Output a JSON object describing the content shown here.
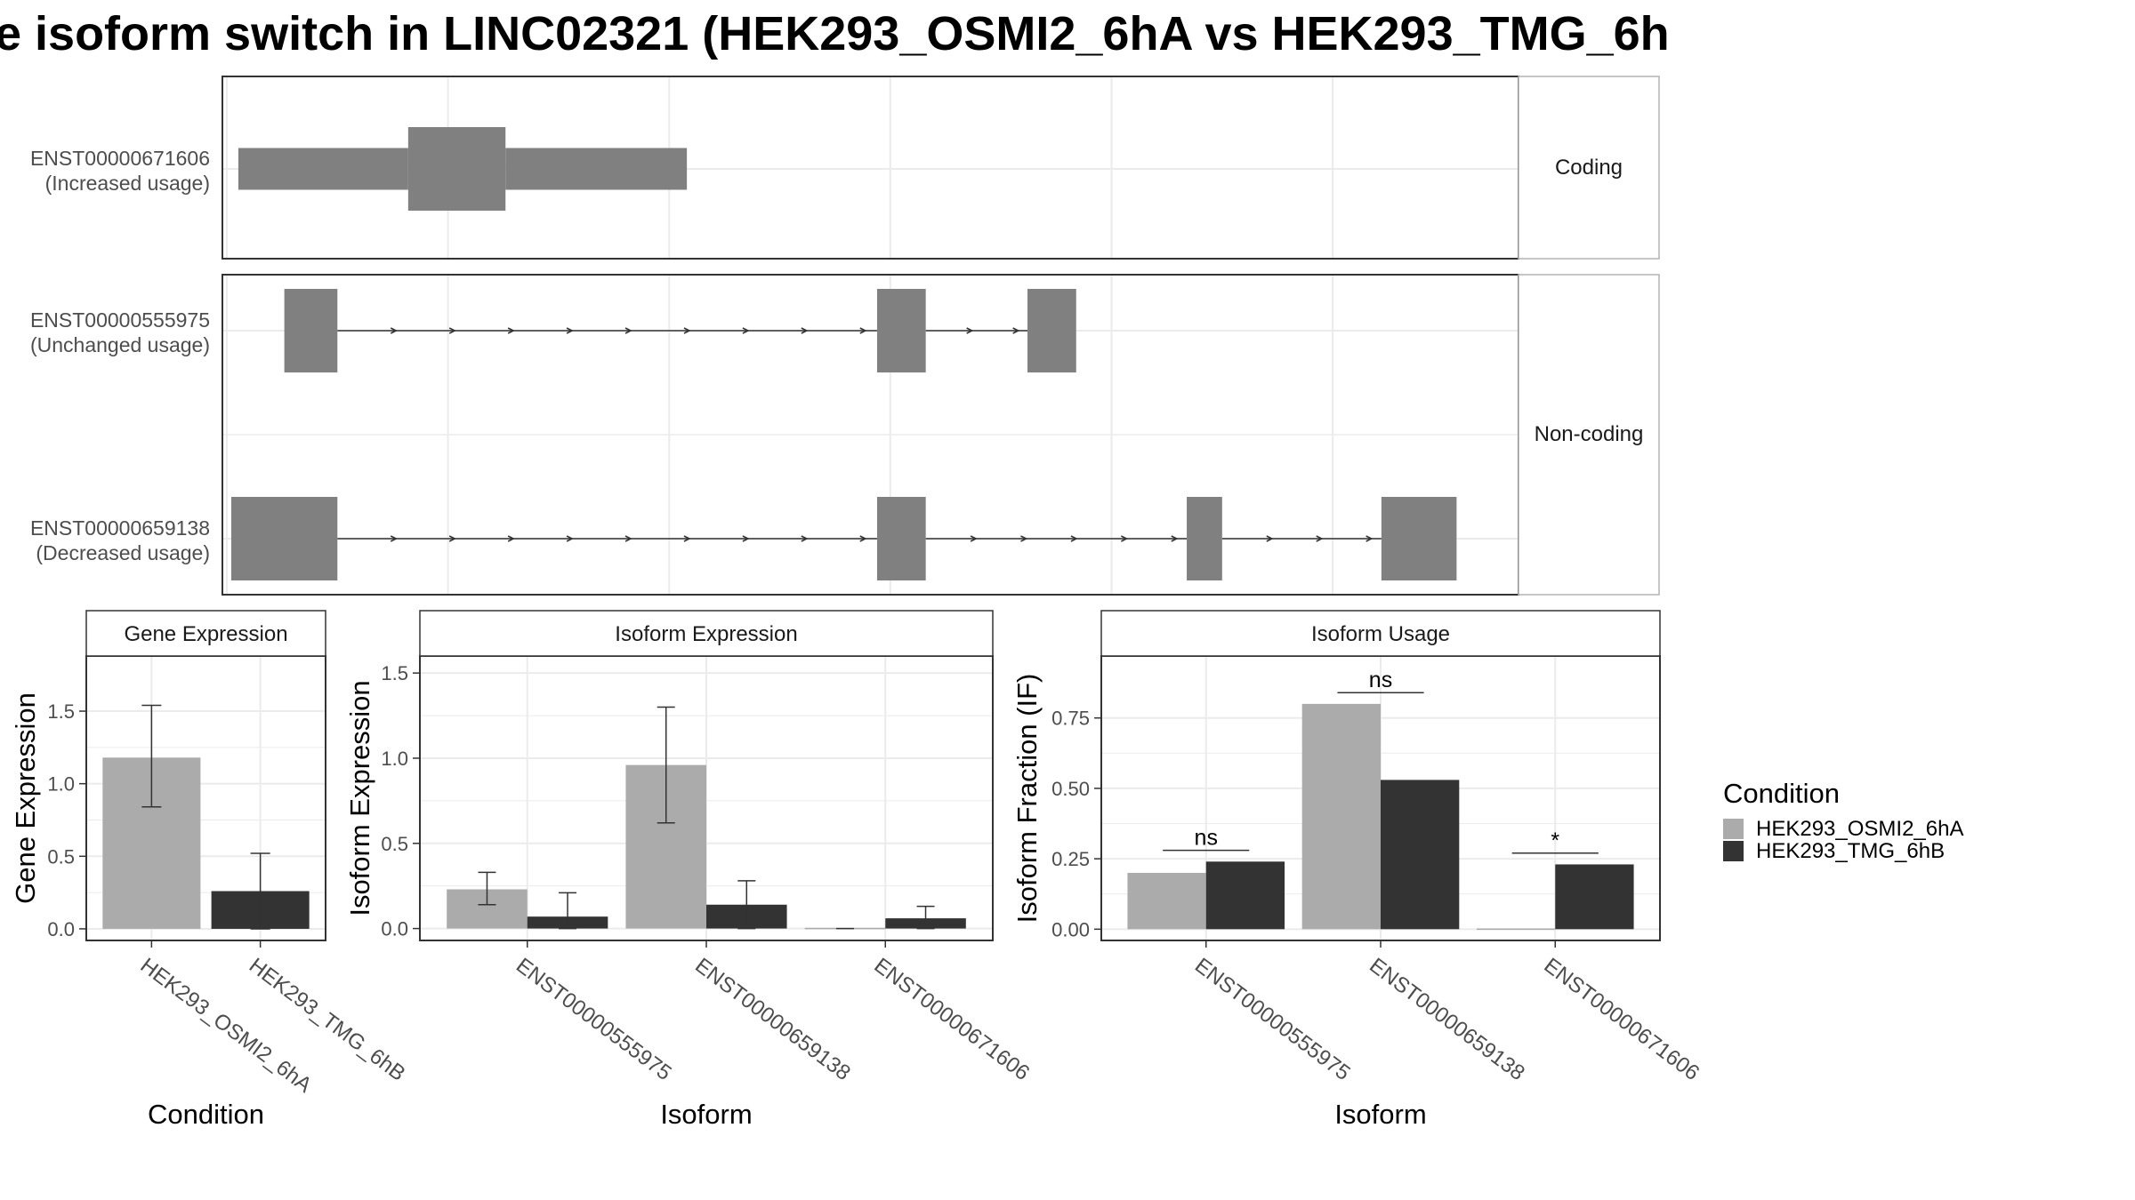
{
  "title": "e isoform switch in LINC02321 (HEK293_OSMI2_6hA vs HEK293_TMG_6h",
  "colors": {
    "osmi": "#ABABAB",
    "tmg": "#333333",
    "exon": "#808080",
    "grid": "#EBEBEB",
    "panel_border": "#333333",
    "strip_border": "#B3B3B3",
    "text": "#4D4D4D"
  },
  "chart_data": [
    {
      "type": "gene-structure",
      "facets": [
        {
          "label": "Coding",
          "tracks": [
            {
              "id": "ENST00000671606",
              "usage": "(Increased usage)",
              "exons": [
                [
                  0.13,
                  2.05
                ],
                [
                  2.05,
                  3.15
                ],
                [
                  3.15,
                  5.2
                ]
              ],
              "heights": [
                0.5,
                1.0,
                0.5
              ],
              "introns": []
            }
          ]
        },
        {
          "label": "Non-coding",
          "tracks": [
            {
              "id": "ENST00000555975",
              "usage": "(Unchanged usage)",
              "exons": [
                [
                  0.65,
                  1.25
                ],
                [
                  7.35,
                  7.9
                ],
                [
                  9.05,
                  9.6
                ]
              ],
              "heights": [
                1.0,
                1.0,
                1.0
              ],
              "introns": [
                [
                  1.25,
                  7.35
                ],
                [
                  7.9,
                  9.05
                ]
              ]
            },
            {
              "id": "ENST00000659138",
              "usage": "(Decreased usage)",
              "exons": [
                [
                  0.05,
                  1.25
                ],
                [
                  7.35,
                  7.9
                ],
                [
                  10.85,
                  11.25
                ],
                [
                  13.05,
                  13.9
                ]
              ],
              "heights": [
                1.0,
                1.0,
                1.0,
                1.0
              ],
              "introns": [
                [
                  1.25,
                  7.35
                ],
                [
                  7.9,
                  10.85
                ],
                [
                  11.25,
                  13.05
                ]
              ]
            }
          ]
        }
      ],
      "xlim": [
        -0.05,
        14.6
      ],
      "gridlines": [
        0,
        2.5,
        5,
        7.5,
        10,
        12.5
      ]
    },
    {
      "type": "bar",
      "title": "Gene Expression",
      "xlabel": "Condition",
      "ylabel": "Gene Expression",
      "categories": [
        "HEK293_OSMI2_6hA",
        "HEK293_TMG_6hB"
      ],
      "values": [
        1.18,
        0.26
      ],
      "errors": [
        [
          0.84,
          1.54
        ],
        [
          0.0,
          0.52
        ]
      ],
      "ylim": [
        -0.08,
        1.88
      ],
      "yticks": [
        "0.0",
        "0.5",
        "1.0",
        "1.5"
      ]
    },
    {
      "type": "bar",
      "title": "Isoform Expression",
      "xlabel": "Isoform",
      "ylabel": "Isoform Expression",
      "categories": [
        "ENST00000555975",
        "ENST00000659138",
        "ENST00000671606"
      ],
      "series": [
        {
          "name": "HEK293_OSMI2_6hA",
          "values": [
            0.23,
            0.96,
            0.0
          ],
          "errors": [
            [
              0.14,
              0.33
            ],
            [
              0.62,
              1.3
            ],
            [
              0.0,
              0.0
            ]
          ]
        },
        {
          "name": "HEK293_TMG_6hB",
          "values": [
            0.07,
            0.14,
            0.06
          ],
          "errors": [
            [
              0.0,
              0.21
            ],
            [
              0.0,
              0.28
            ],
            [
              0.0,
              0.13
            ]
          ]
        }
      ],
      "ylim": [
        -0.07,
        1.6
      ],
      "yticks": [
        "0.0",
        "0.5",
        "1.0",
        "1.5"
      ]
    },
    {
      "type": "bar",
      "title": "Isoform Usage",
      "xlabel": "Isoform",
      "ylabel": "Isoform Fraction (IF)",
      "categories": [
        "ENST00000555975",
        "ENST00000659138",
        "ENST00000671606"
      ],
      "series": [
        {
          "name": "HEK293_OSMI2_6hA",
          "values": [
            0.2,
            0.8,
            0.0
          ]
        },
        {
          "name": "HEK293_TMG_6hB",
          "values": [
            0.24,
            0.53,
            0.23
          ]
        }
      ],
      "significance": [
        {
          "label": "ns",
          "y": 0.28
        },
        {
          "label": "ns",
          "y": 0.84
        },
        {
          "label": "*",
          "y": 0.27
        }
      ],
      "ylim": [
        -0.04,
        0.97
      ],
      "yticks": [
        "0.00",
        "0.25",
        "0.50",
        "0.75"
      ]
    }
  ],
  "legend": {
    "title": "Condition",
    "items": [
      "HEK293_OSMI2_6hA",
      "HEK293_TMG_6hB"
    ]
  }
}
